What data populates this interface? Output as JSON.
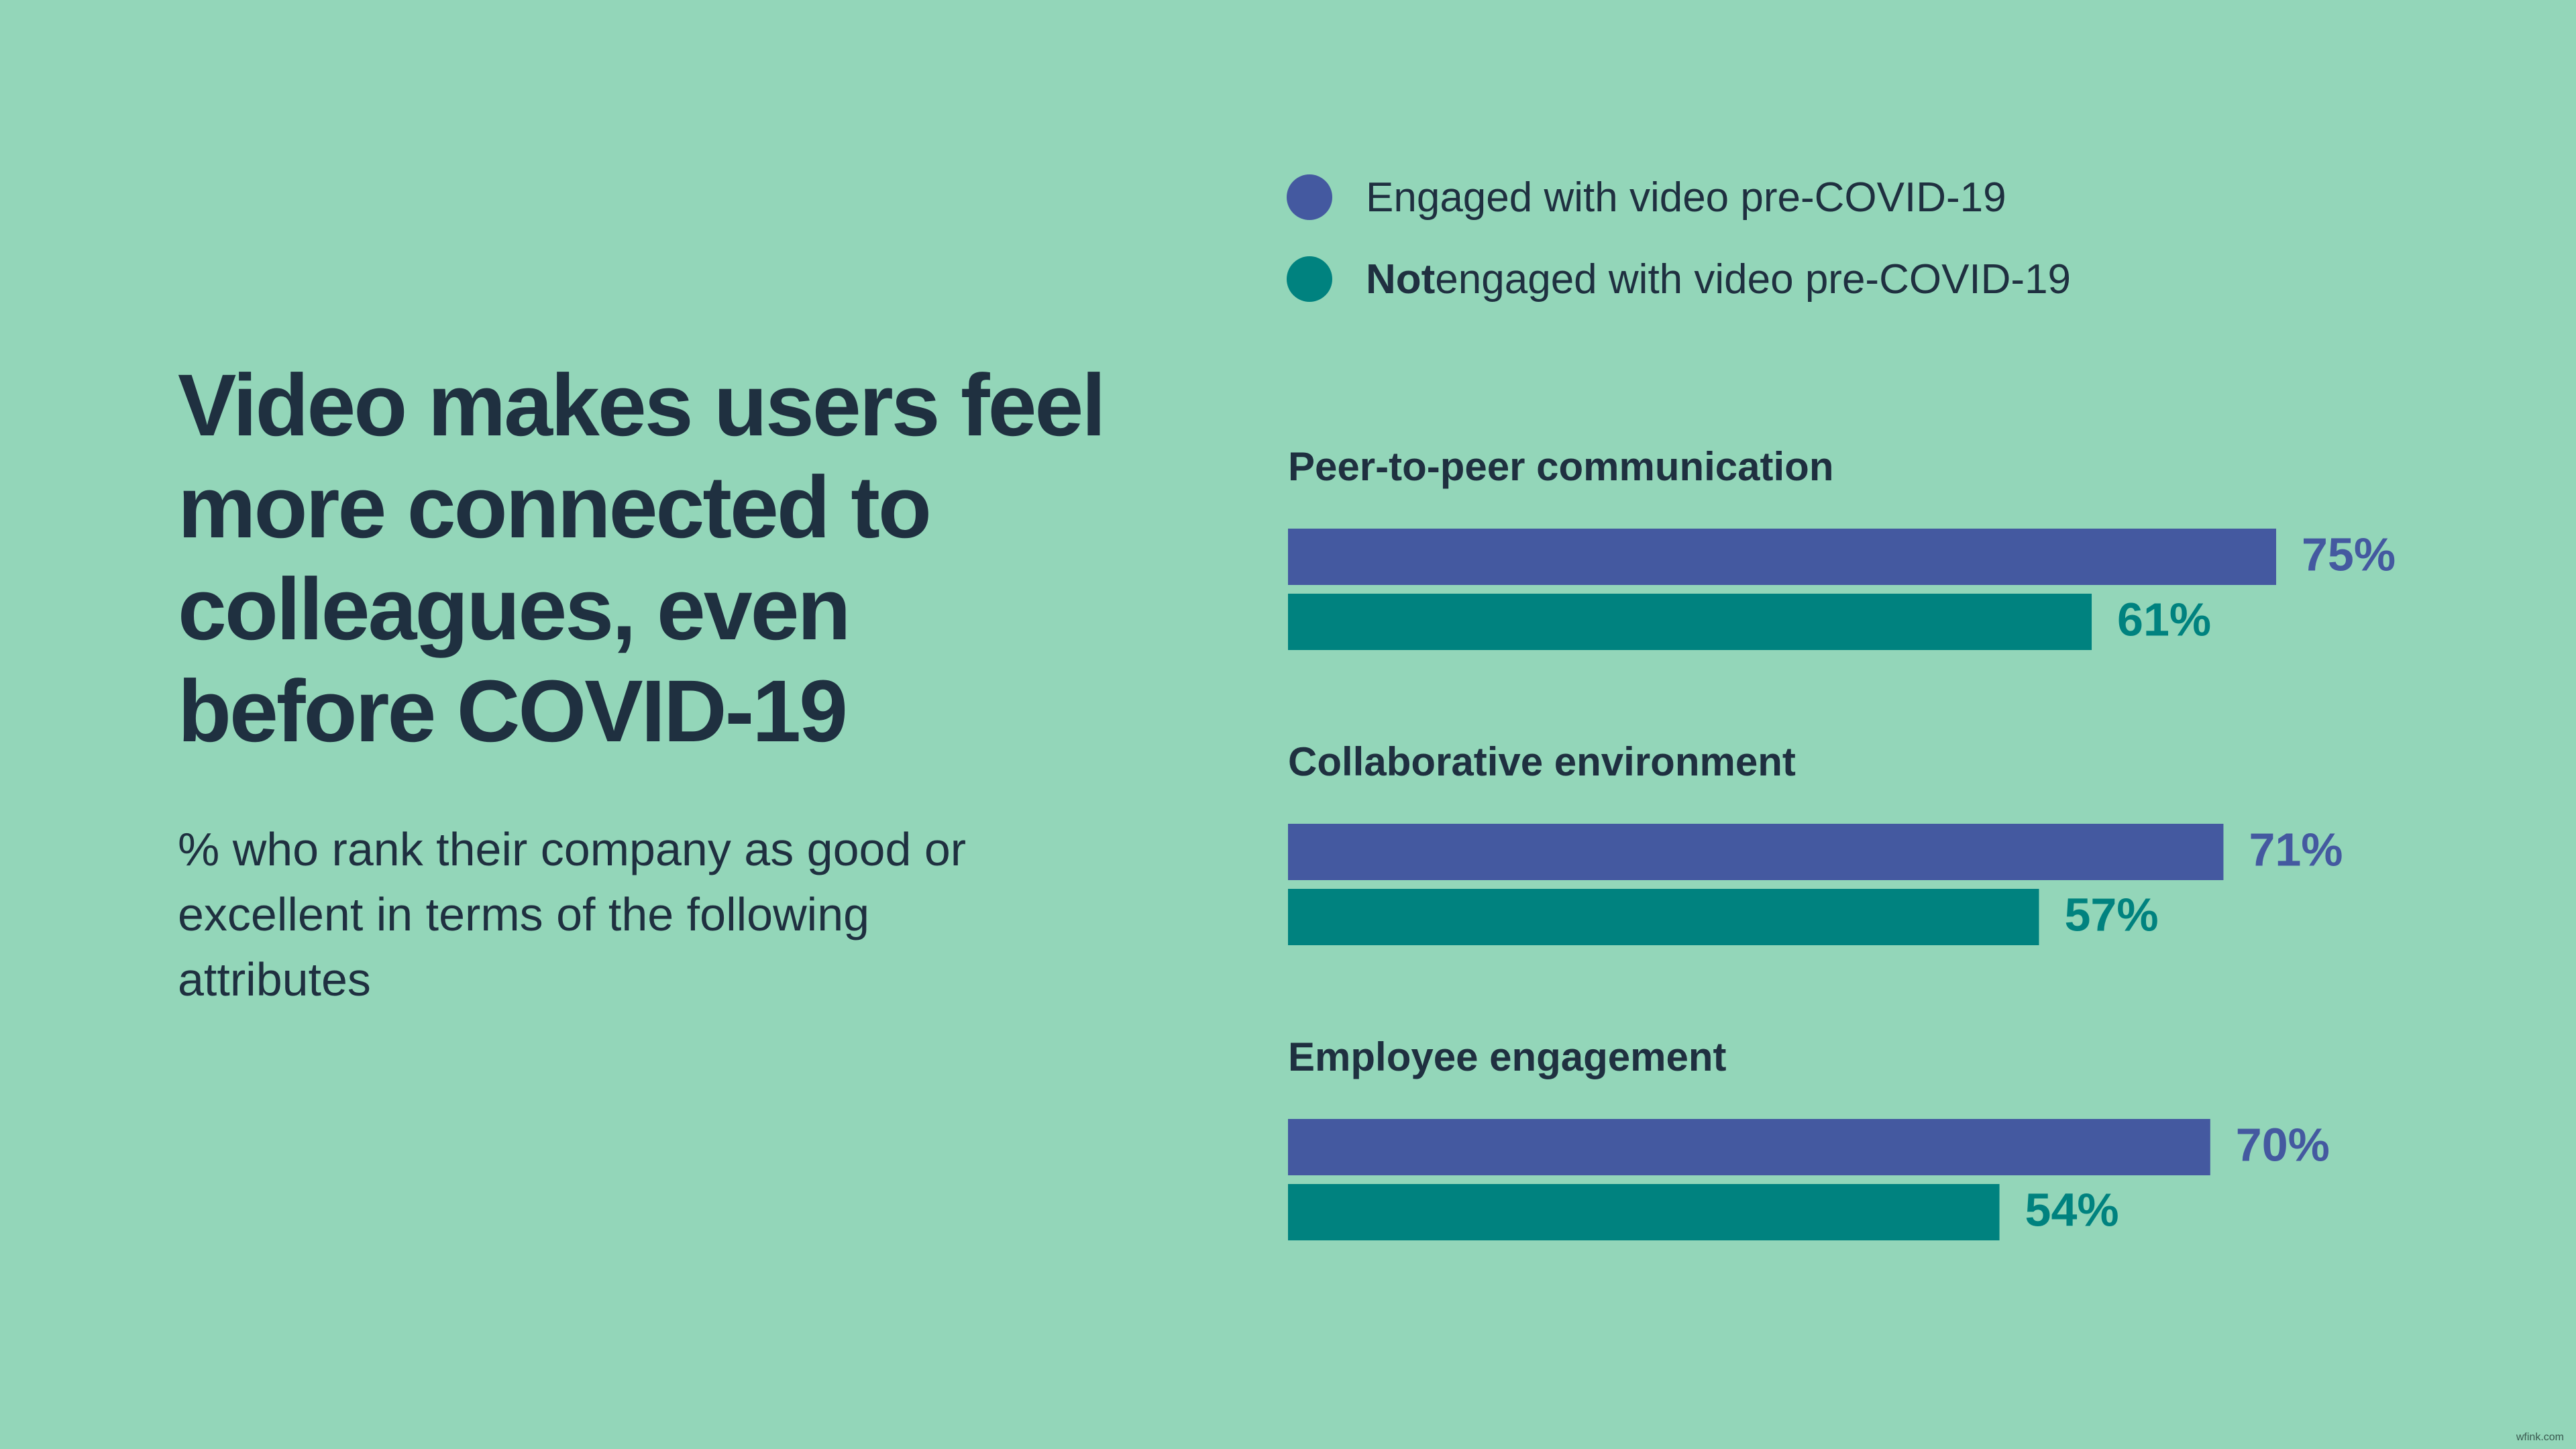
{
  "title": "Video makes users feel more connected to colleagues, even before COVID-19",
  "subtitle": "% who rank their company as good or excellent in terms of the following attributes",
  "legend": {
    "engaged": {
      "label": "Engaged with video pre-COVID-19",
      "color": "#4459a0"
    },
    "not_engaged": {
      "emphasis": "Not",
      "label": " engaged with video pre-COVID-19",
      "color": "#00827f"
    }
  },
  "watermark": "wfink.com",
  "chart_data": {
    "type": "bar",
    "orientation": "horizontal",
    "categories": [
      "Peer-to-peer communication",
      "Collaborative environment",
      "Employee engagement"
    ],
    "series": [
      {
        "name": "Engaged with video pre-COVID-19",
        "values": [
          75,
          71,
          70
        ],
        "labels": [
          "75%",
          "71%",
          "70%"
        ],
        "color": "#4459a0"
      },
      {
        "name": "Not engaged with video pre-COVID-19",
        "values": [
          61,
          57,
          54
        ],
        "labels": [
          "61%",
          "57%",
          "54%"
        ],
        "color": "#00827f"
      }
    ],
    "unit": "%",
    "grid": false,
    "axes_visible": false,
    "legend_position": "top"
  }
}
